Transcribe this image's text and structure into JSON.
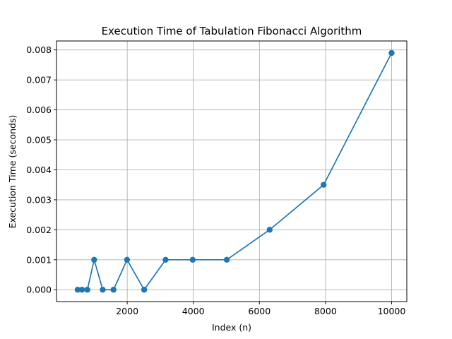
{
  "chart_data": {
    "type": "line",
    "title": "Execution Time of Tabulation Fibonacci Algorithm",
    "xlabel": "Index (n)",
    "ylabel": "Execution Time (seconds)",
    "xlim": [
      -140,
      10460
    ],
    "ylim": [
      -0.000395,
      0.0083
    ],
    "x_ticks": [
      2000,
      4000,
      6000,
      8000,
      10000
    ],
    "x_tick_labels": [
      "2000",
      "4000",
      "6000",
      "8000",
      "10000"
    ],
    "y_ticks": [
      0.0,
      0.001,
      0.002,
      0.003,
      0.004,
      0.005,
      0.006,
      0.007,
      0.008
    ],
    "y_tick_labels": [
      "0.000",
      "0.001",
      "0.002",
      "0.003",
      "0.004",
      "0.005",
      "0.006",
      "0.007",
      "0.008"
    ],
    "grid": true,
    "series": [
      {
        "color": "#1f77b4",
        "marker": "circle",
        "x": [
          500,
          631,
          794,
          1000,
          1259,
          1585,
          1995,
          2512,
          3162,
          3981,
          5012,
          6310,
          7943,
          10000
        ],
        "y": [
          0.0,
          0.0,
          0.0,
          0.001,
          0.0,
          0.0,
          0.001,
          0.0,
          0.001,
          0.001,
          0.001,
          0.002,
          0.0035,
          0.0079
        ]
      }
    ]
  }
}
